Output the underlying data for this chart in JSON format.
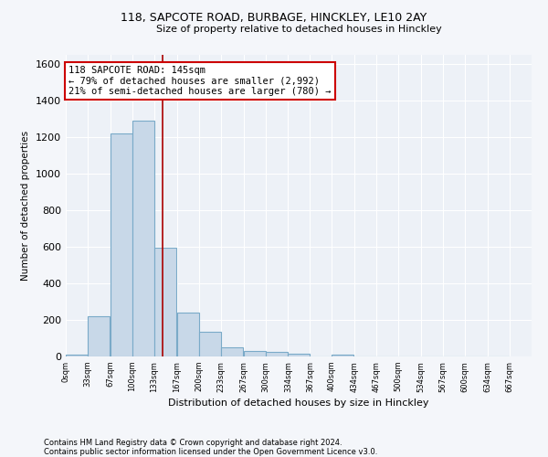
{
  "title1": "118, SAPCOTE ROAD, BURBAGE, HINCKLEY, LE10 2AY",
  "title2": "Size of property relative to detached houses in Hinckley",
  "xlabel": "Distribution of detached houses by size in Hinckley",
  "ylabel": "Number of detached properties",
  "footnote1": "Contains HM Land Registry data © Crown copyright and database right 2024.",
  "footnote2": "Contains public sector information licensed under the Open Government Licence v3.0.",
  "bar_edges": [
    0,
    33,
    67,
    100,
    133,
    167,
    200,
    233,
    267,
    300,
    334,
    367,
    400,
    434,
    467,
    500,
    534,
    567,
    600,
    634,
    667
  ],
  "bar_values": [
    10,
    220,
    1220,
    1290,
    595,
    240,
    135,
    48,
    30,
    25,
    15,
    0,
    12,
    0,
    0,
    0,
    0,
    0,
    0,
    0
  ],
  "bar_color": "#c8d8e8",
  "bar_edgecolor": "#7aaac8",
  "vline_x": 145,
  "vline_color": "#aa0000",
  "annotation_text": "118 SAPCOTE ROAD: 145sqm\n← 79% of detached houses are smaller (2,992)\n21% of semi-detached houses are larger (780) →",
  "annotation_box_color": "#ffffff",
  "annotation_box_edgecolor": "#cc0000",
  "ylim": [
    0,
    1650
  ],
  "background_color": "#edf1f7",
  "grid_color": "#ffffff",
  "fig_bg": "#f4f6fa",
  "tick_labels": [
    "0sqm",
    "33sqm",
    "67sqm",
    "100sqm",
    "133sqm",
    "167sqm",
    "200sqm",
    "233sqm",
    "267sqm",
    "300sqm",
    "334sqm",
    "367sqm",
    "400sqm",
    "434sqm",
    "467sqm",
    "500sqm",
    "534sqm",
    "567sqm",
    "600sqm",
    "634sqm",
    "667sqm"
  ],
  "yticks": [
    0,
    200,
    400,
    600,
    800,
    1000,
    1200,
    1400,
    1600
  ]
}
